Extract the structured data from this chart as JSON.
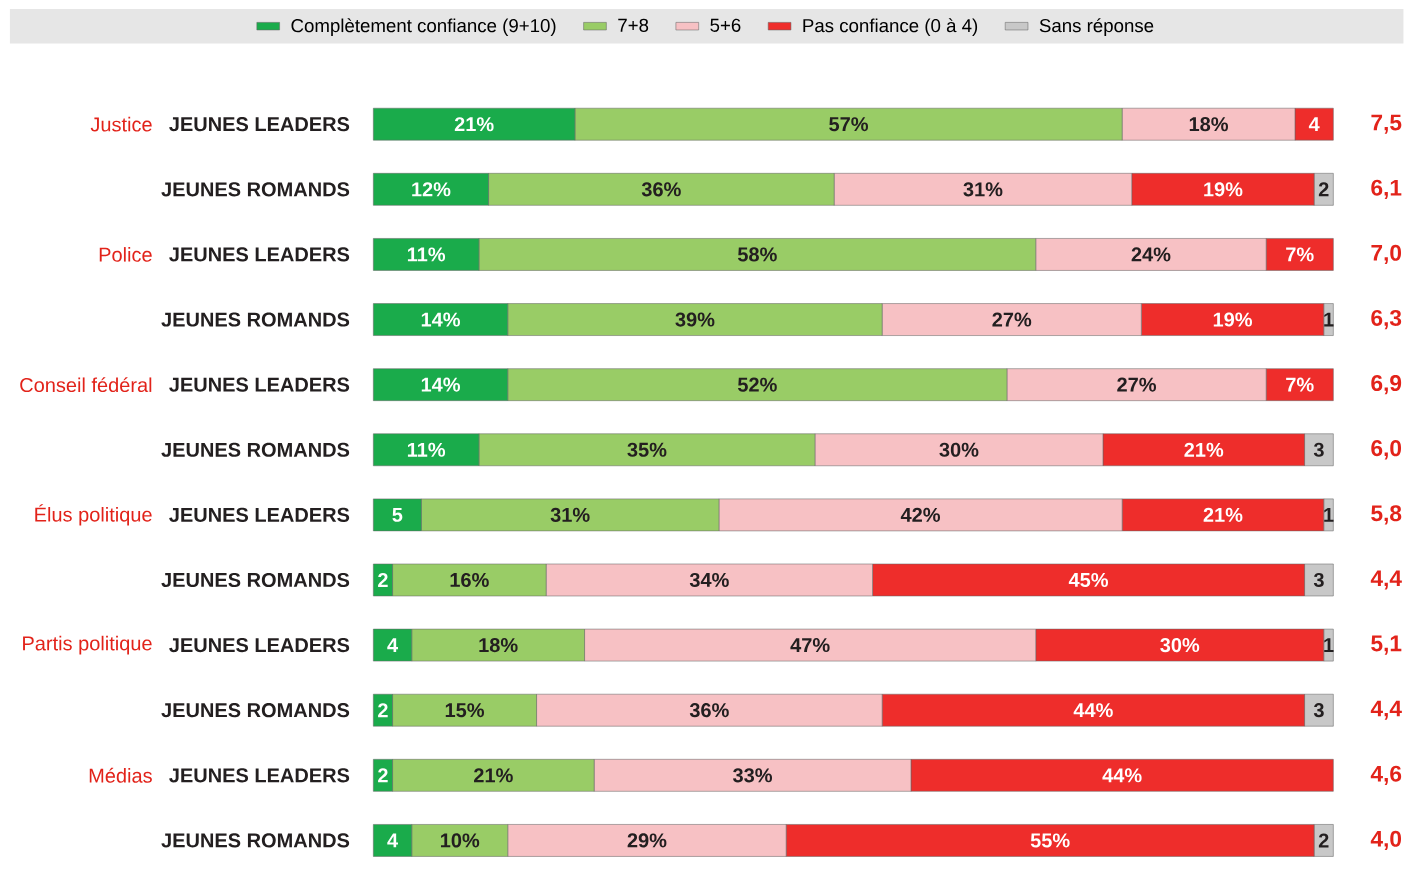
{
  "chart_data": {
    "type": "bar",
    "orientation": "horizontal",
    "stacked": true,
    "legend": "top",
    "tick_labels": "y",
    "xlim": [
      0,
      100
    ],
    "categories": [
      "JEUNES LEADERS",
      "JEUNES ROMANDS",
      "JEUNES LEADERS",
      "JEUNES ROMANDS",
      "JEUNES LEADERS",
      "JEUNES ROMANDS",
      "JEUNES LEADERS",
      "JEUNES ROMANDS",
      "JEUNES LEADERS",
      "JEUNES ROMANDS",
      "JEUNES LEADERS",
      "JEUNES ROMANDS"
    ],
    "series": [
      {
        "name": "Complètement confiance (9+10)",
        "color": "#1aab4b",
        "values": [
          21,
          12,
          11,
          14,
          14,
          11,
          5,
          2,
          4,
          2,
          2,
          4
        ],
        "value_labels": [
          "21%",
          "12%",
          "11%",
          "14%",
          "14%",
          "11%",
          "5",
          "2",
          "4",
          "2",
          "2",
          "4"
        ]
      },
      {
        "name": "7+8",
        "color": "#99cc66",
        "values": [
          57,
          36,
          58,
          39,
          52,
          35,
          31,
          16,
          18,
          15,
          21,
          10
        ],
        "value_labels": [
          "57%",
          "36%",
          "58%",
          "39%",
          "52%",
          "35%",
          "31%",
          "16%",
          "18%",
          "15%",
          "21%",
          "10%"
        ]
      },
      {
        "name": "5+6",
        "color": "#f7c1c4",
        "values": [
          18,
          31,
          24,
          27,
          27,
          30,
          42,
          34,
          47,
          36,
          33,
          29
        ],
        "value_labels": [
          "18%",
          "31%",
          "24%",
          "27%",
          "27%",
          "30%",
          "42%",
          "34%",
          "47%",
          "36%",
          "33%",
          "29%"
        ]
      },
      {
        "name": "Pas confiance (0 à 4)",
        "color": "#ee2d2b",
        "values": [
          4,
          19,
          7,
          19,
          7,
          21,
          21,
          45,
          30,
          44,
          44,
          55
        ],
        "value_labels": [
          "4",
          "19%",
          "7%",
          "19%",
          "7%",
          "21%",
          "21%",
          "45%",
          "30%",
          "44%",
          "44%",
          "55%"
        ]
      },
      {
        "name": "Sans réponse",
        "color": "#c8c8c8",
        "values": [
          null,
          2,
          null,
          1,
          null,
          3,
          1,
          3,
          1,
          3,
          null,
          2
        ],
        "value_labels": [
          null,
          "2",
          null,
          "1",
          null,
          "3",
          "1",
          "3",
          "1",
          "3",
          null,
          "2"
        ]
      }
    ],
    "annotations": [
      "Justice",
      "Police",
      "Conseil fédéral",
      "Élus politique",
      "Partis politique",
      "Médias",
      "7,5",
      "6,1",
      "7,0",
      "6,3",
      "6,9",
      "6,0",
      "5,8",
      "4,4",
      "5,1",
      "4,4",
      "4,6",
      "4,0"
    ]
  }
}
